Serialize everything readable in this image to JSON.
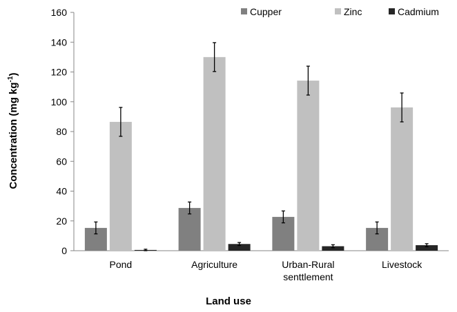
{
  "chart_data": {
    "type": "bar",
    "x_label": "Land use",
    "y_label": {
      "text": "Concentration (mg kg",
      "superscript": "-1",
      "suffix": ")"
    },
    "categories": [
      "Pond",
      "Agriculture",
      "Urban-Rural senttlement",
      "Livestock"
    ],
    "series": [
      {
        "name": "Cupper",
        "color": "#808080",
        "values": [
          15.3,
          28.7,
          22.7,
          15.3
        ],
        "errors": [
          4,
          4,
          4,
          4
        ]
      },
      {
        "name": "Zinc",
        "color": "#c0c0c0",
        "values": [
          86.5,
          130,
          114.2,
          96.2
        ],
        "errors": [
          9.7,
          9.7,
          9.7,
          9.7
        ]
      },
      {
        "name": "Cadmium",
        "color": "#262626",
        "values": [
          0.5,
          4.5,
          3,
          3.7
        ],
        "errors": [
          0.5,
          1,
          1,
          1
        ]
      }
    ],
    "ylim": [
      0,
      160
    ],
    "yticks": [
      0,
      20,
      40,
      60,
      80,
      100,
      120,
      140,
      160
    ],
    "grid": false,
    "legend": "top-right"
  }
}
